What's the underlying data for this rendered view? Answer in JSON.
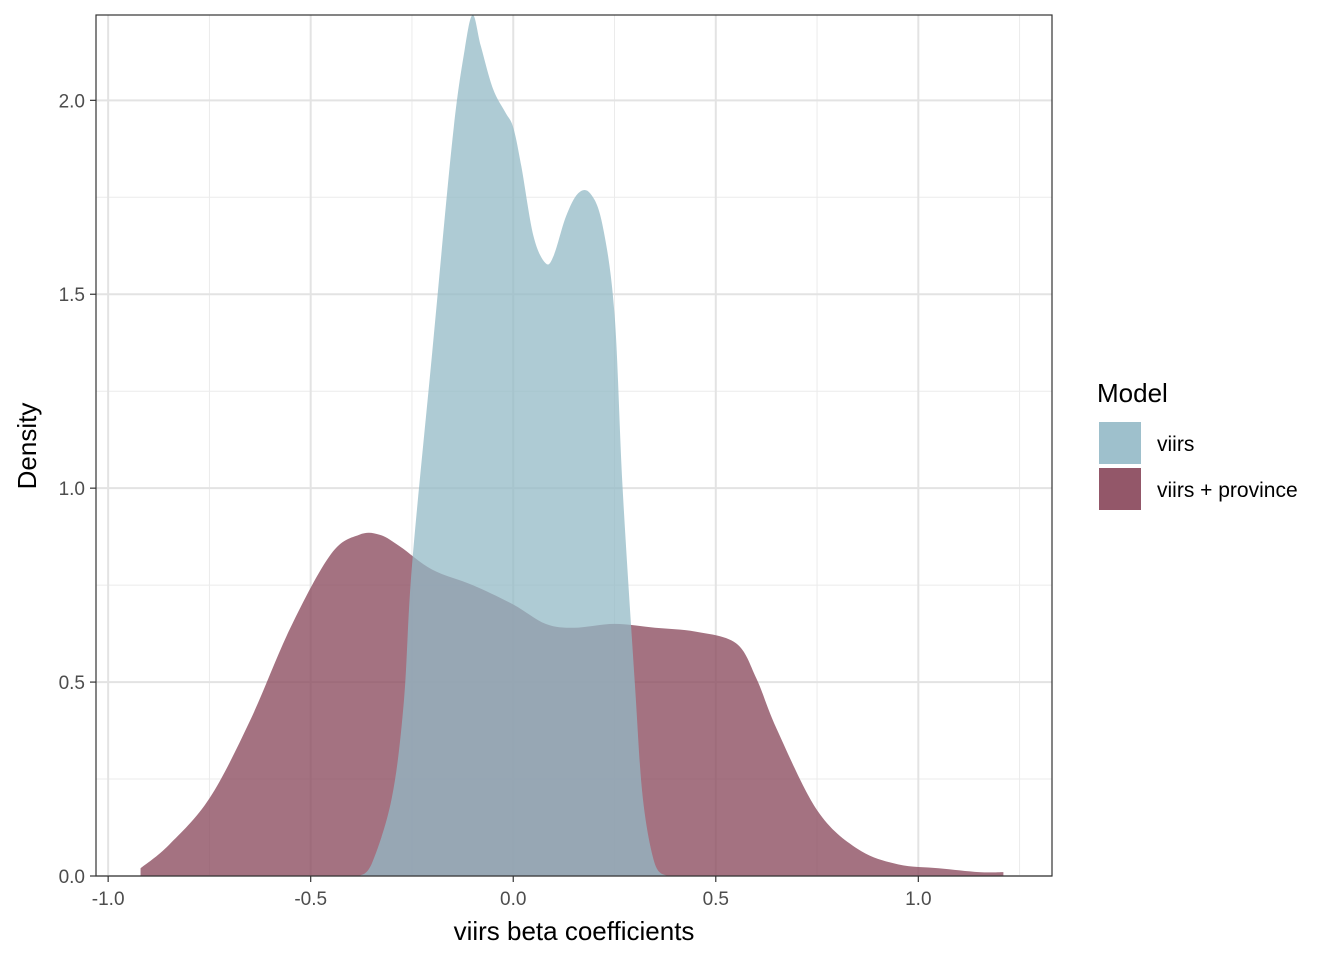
{
  "chart_data": {
    "type": "area",
    "xlabel": "viirs beta coefficients",
    "ylabel": "Density",
    "xlim": [
      -1.03,
      1.33
    ],
    "ylim": [
      0,
      2.22
    ],
    "x_ticks": [
      -1.0,
      -0.5,
      0.0,
      0.5,
      1.0
    ],
    "x_tick_labels": [
      "-1.0",
      "-0.5",
      "0.0",
      "0.5",
      "1.0"
    ],
    "y_ticks": [
      0.0,
      0.5,
      1.0,
      1.5,
      2.0
    ],
    "y_tick_labels": [
      "0.0",
      "0.5",
      "1.0",
      "1.5",
      "2.0"
    ],
    "grid": true,
    "legend": {
      "title": "Model",
      "position": "right"
    },
    "series": [
      {
        "name": "viirs + province",
        "color": "#8b4a5e",
        "opacity": 0.78,
        "x": [
          -0.92,
          -0.85,
          -0.75,
          -0.65,
          -0.55,
          -0.45,
          -0.38,
          -0.33,
          -0.28,
          -0.2,
          -0.1,
          0.0,
          0.08,
          0.15,
          0.25,
          0.35,
          0.45,
          0.55,
          0.6,
          0.65,
          0.75,
          0.85,
          0.95,
          1.05,
          1.15,
          1.21
        ],
        "y": [
          0.02,
          0.08,
          0.2,
          0.4,
          0.64,
          0.83,
          0.88,
          0.88,
          0.85,
          0.79,
          0.75,
          0.7,
          0.65,
          0.64,
          0.65,
          0.64,
          0.63,
          0.6,
          0.51,
          0.38,
          0.17,
          0.07,
          0.03,
          0.02,
          0.01,
          0.01
        ]
      },
      {
        "name": "viirs",
        "color": "#93b9c6",
        "opacity": 0.75,
        "x": [
          -0.38,
          -0.35,
          -0.3,
          -0.27,
          -0.25,
          -0.2,
          -0.15,
          -0.12,
          -0.1,
          -0.08,
          -0.05,
          -0.02,
          0.0,
          0.02,
          0.05,
          0.08,
          0.1,
          0.13,
          0.16,
          0.19,
          0.22,
          0.25,
          0.27,
          0.3,
          0.32,
          0.35,
          0.38
        ],
        "y": [
          0.0,
          0.03,
          0.2,
          0.45,
          0.8,
          1.35,
          1.9,
          2.13,
          2.22,
          2.14,
          2.03,
          1.97,
          1.93,
          1.83,
          1.65,
          1.58,
          1.6,
          1.7,
          1.76,
          1.76,
          1.68,
          1.45,
          1.0,
          0.5,
          0.2,
          0.03,
          0.0
        ]
      }
    ]
  }
}
